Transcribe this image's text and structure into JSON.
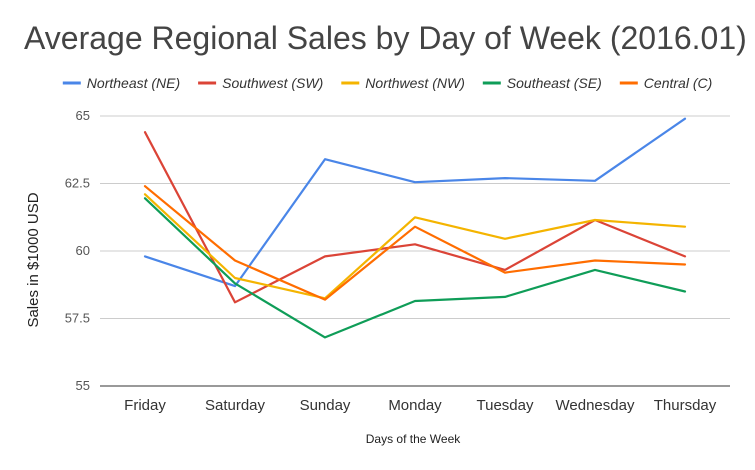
{
  "chart_data": {
    "type": "line",
    "title": "Average Regional Sales by Day of Week (2016.01)",
    "xlabel": "Days of the Week",
    "ylabel": "Sales in $1000 USD",
    "categories": [
      "Friday",
      "Saturday",
      "Sunday",
      "Monday",
      "Tuesday",
      "Wednesday",
      "Thursday"
    ],
    "ylim": [
      55,
      65
    ],
    "yticks": [
      55,
      57.5,
      60,
      62.5,
      65
    ],
    "ytick_labels": [
      "55",
      "57.5",
      "60",
      "62.5",
      "65"
    ],
    "grid": true,
    "legend_position": "top",
    "series": [
      {
        "name": "Northeast (NE)",
        "color": "#4a86e8",
        "values": [
          59.8,
          58.7,
          63.4,
          62.55,
          62.7,
          62.6,
          64.9
        ]
      },
      {
        "name": "Southwest (SW)",
        "color": "#db4437",
        "values": [
          64.4,
          58.1,
          59.8,
          60.25,
          59.3,
          61.15,
          59.8
        ]
      },
      {
        "name": "Northwest (NW)",
        "color": "#f4b400",
        "values": [
          62.1,
          59.0,
          58.25,
          61.25,
          60.45,
          61.15,
          60.9
        ]
      },
      {
        "name": "Southeast (SE)",
        "color": "#0f9d58",
        "values": [
          61.95,
          58.8,
          56.8,
          58.15,
          58.3,
          59.3,
          58.5
        ]
      },
      {
        "name": "Central (C)",
        "color": "#ff6d00",
        "values": [
          62.4,
          59.65,
          58.2,
          60.9,
          59.2,
          59.65,
          59.5
        ]
      }
    ]
  }
}
